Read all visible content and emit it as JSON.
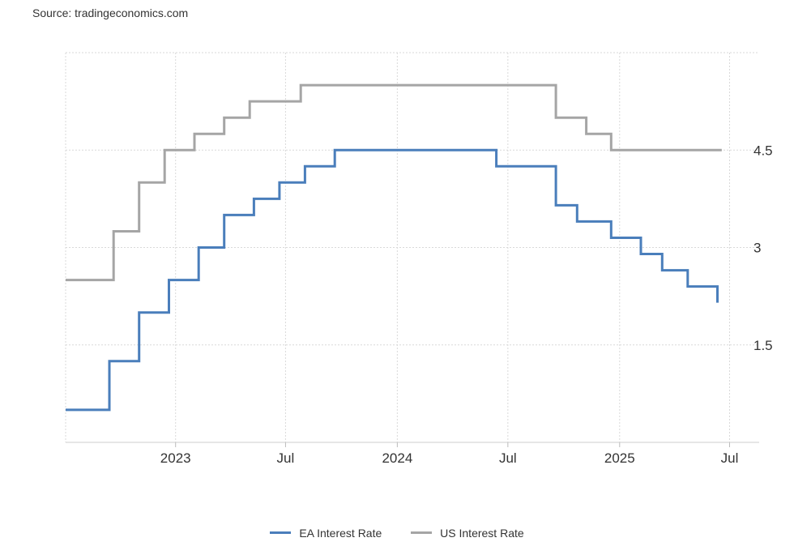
{
  "source": "Source: tradingeconomics.com",
  "colors": {
    "ea": "#4a7ebb",
    "us": "#a5a5a5",
    "grid": "#d9d9d9",
    "axis": "#cccccc"
  },
  "chart_data": {
    "type": "line",
    "step": true,
    "title": "",
    "xlabel": "",
    "ylabel": "",
    "xlim": [
      "2022-07-04",
      "2025-07-31"
    ],
    "ylim": [
      0,
      6
    ],
    "y_axis_side": "right",
    "grid": true,
    "legend_position": "bottom-center",
    "x_ticks": [
      {
        "date": "2023-01-01",
        "label": "2023"
      },
      {
        "date": "2023-07-01",
        "label": "Jul"
      },
      {
        "date": "2024-01-01",
        "label": "2024"
      },
      {
        "date": "2024-07-01",
        "label": "Jul"
      },
      {
        "date": "2025-01-01",
        "label": "2025"
      },
      {
        "date": "2025-07-01",
        "label": "Jul"
      }
    ],
    "y_ticks": [
      1.5,
      3,
      4.5
    ],
    "y_tick_labels": [
      "1.5",
      "3",
      "4.5"
    ],
    "series": [
      {
        "name": "EA Interest Rate",
        "color": "#4a7ebb",
        "points": [
          [
            "2022-07-04",
            0.5
          ],
          [
            "2022-09-14",
            1.25
          ],
          [
            "2022-11-02",
            2.0
          ],
          [
            "2022-12-21",
            2.5
          ],
          [
            "2023-02-08",
            3.0
          ],
          [
            "2023-03-22",
            3.5
          ],
          [
            "2023-05-10",
            3.75
          ],
          [
            "2023-06-21",
            4.0
          ],
          [
            "2023-08-02",
            4.25
          ],
          [
            "2023-09-20",
            4.5
          ],
          [
            "2024-06-12",
            4.25
          ],
          [
            "2024-09-18",
            3.65
          ],
          [
            "2024-10-23",
            3.4
          ],
          [
            "2024-12-18",
            3.15
          ],
          [
            "2025-02-05",
            2.9
          ],
          [
            "2025-03-12",
            2.65
          ],
          [
            "2025-04-23",
            2.4
          ],
          [
            "2025-06-11",
            2.15
          ]
        ]
      },
      {
        "name": "US Interest Rate",
        "color": "#a5a5a5",
        "points": [
          [
            "2022-07-04",
            2.5
          ],
          [
            "2022-07-27",
            2.5
          ],
          [
            "2022-09-21",
            3.25
          ],
          [
            "2022-11-02",
            4.0
          ],
          [
            "2022-12-14",
            4.5
          ],
          [
            "2023-02-01",
            4.75
          ],
          [
            "2023-03-22",
            5.0
          ],
          [
            "2023-05-03",
            5.25
          ],
          [
            "2023-07-26",
            5.5
          ],
          [
            "2024-09-18",
            5.0
          ],
          [
            "2024-11-07",
            4.75
          ],
          [
            "2024-12-18",
            4.5
          ],
          [
            "2025-06-18",
            4.5
          ]
        ]
      }
    ]
  },
  "legend": [
    {
      "label": "EA Interest Rate",
      "color": "#4a7ebb"
    },
    {
      "label": "US Interest Rate",
      "color": "#a5a5a5"
    }
  ]
}
